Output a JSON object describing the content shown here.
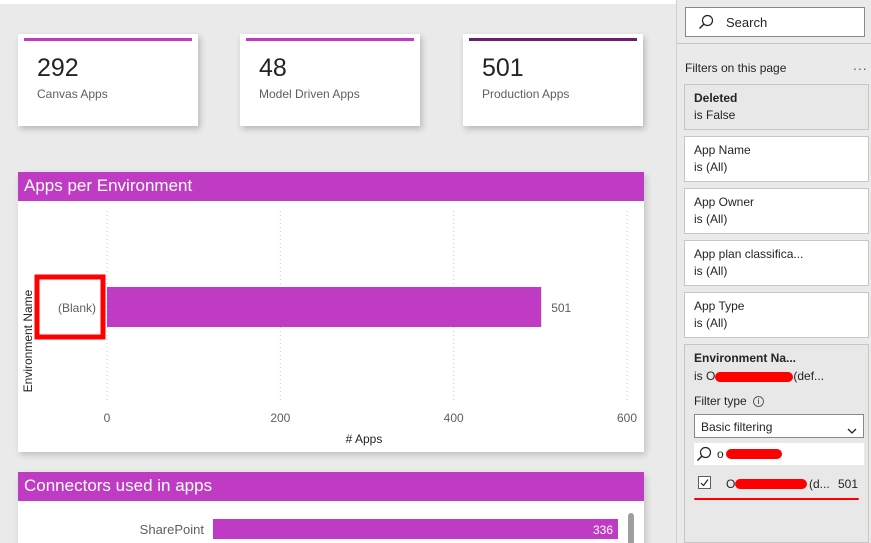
{
  "cards": [
    {
      "value": "292",
      "label": "Canvas Apps",
      "accent": "#c03bc4"
    },
    {
      "value": "48",
      "label": "Model Driven Apps",
      "accent": "#c03bc4"
    },
    {
      "value": "501",
      "label": "Production Apps",
      "accent": "#6b1f6e"
    }
  ],
  "visual1": {
    "title": "Apps per Environment",
    "chart_data": {
      "type": "bar",
      "orientation": "horizontal",
      "categories": [
        "(Blank)"
      ],
      "values": [
        501
      ],
      "data_labels": [
        "501"
      ],
      "xlabel": "# Apps",
      "ylabel": "Environment Name",
      "xlim": [
        0,
        600
      ],
      "xticks": [
        "0",
        "200",
        "400",
        "600"
      ],
      "grid": true,
      "color": "#c03bc4",
      "highlight_color": "#ff0000"
    }
  },
  "visual2": {
    "title": "Connectors used in apps",
    "chart_data": {
      "type": "bar",
      "orientation": "horizontal",
      "categories": [
        "SharePoint"
      ],
      "values": [
        336
      ],
      "data_labels": [
        "336"
      ],
      "color": "#c03bc4"
    }
  },
  "filters": {
    "search_placeholder": "Search",
    "header": "Filters on this page",
    "more": "...",
    "items": [
      {
        "name": "Deleted",
        "value": "is False"
      },
      {
        "name": "App Name",
        "value": "is (All)"
      },
      {
        "name": "App Owner",
        "value": "is (All)"
      },
      {
        "name": "App plan classifica...",
        "value": "is (All)"
      },
      {
        "name": "App Type",
        "value": "is (All)"
      }
    ],
    "env": {
      "name": "Environment Na...",
      "value_prefix": "is O",
      "value_suffix": "(def...",
      "filter_type_label": "Filter type",
      "filter_type_value": "Basic filtering",
      "search_value": "o",
      "option_prefix": "O",
      "option_suffix": "(d...",
      "option_count": "501"
    }
  },
  "colors": {
    "accent": "#c03bc4",
    "redaction": "#ff0000"
  }
}
